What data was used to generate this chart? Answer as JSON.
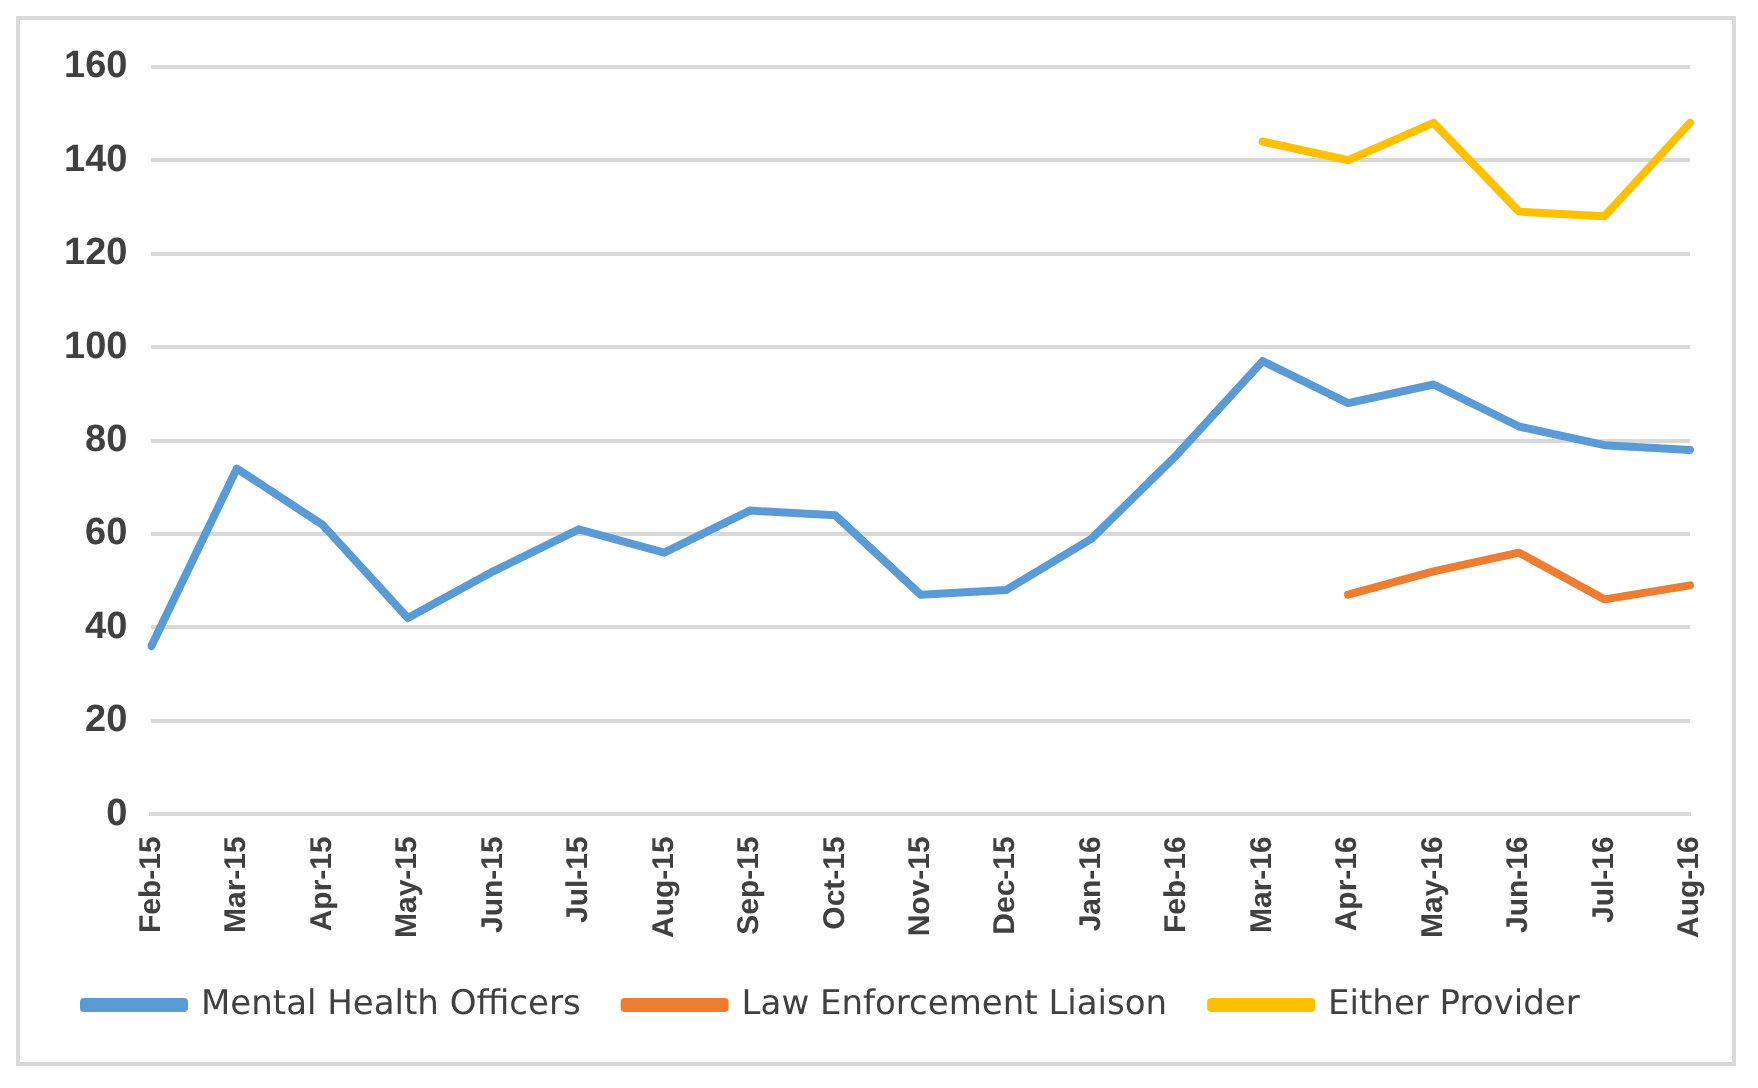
{
  "chart_data": {
    "type": "line",
    "categories": [
      "Feb-15",
      "Mar-15",
      "Apr-15",
      "May-15",
      "Jun-15",
      "Jul-15",
      "Aug-15",
      "Sep-15",
      "Oct-15",
      "Nov-15",
      "Dec-15",
      "Jan-16",
      "Feb-16",
      "Mar-16",
      "Apr-16",
      "May-16",
      "Jun-16",
      "Jul-16",
      "Aug-16"
    ],
    "series": [
      {
        "name": "Mental Health Officers",
        "color": "#5b9bd5",
        "values": [
          36,
          74,
          62,
          42,
          52,
          61,
          56,
          65,
          64,
          47,
          48,
          59,
          77,
          97,
          88,
          92,
          83,
          79,
          78
        ]
      },
      {
        "name": "Law Enforcement Liaison",
        "color": "#ed7d31",
        "values": [
          null,
          null,
          null,
          null,
          null,
          null,
          null,
          null,
          null,
          null,
          null,
          null,
          null,
          null,
          47,
          52,
          56,
          46,
          49
        ]
      },
      {
        "name": "Either Provider",
        "color": "#ffc000",
        "values": [
          null,
          null,
          null,
          null,
          null,
          null,
          null,
          null,
          null,
          null,
          null,
          null,
          null,
          144,
          140,
          148,
          129,
          128,
          148
        ]
      }
    ],
    "ylim": [
      0,
      160
    ],
    "yticks": [
      0,
      20,
      40,
      60,
      80,
      100,
      120,
      140,
      160
    ],
    "grid": "y",
    "legend": "bottom",
    "marker": "none",
    "line_style": "solid"
  }
}
